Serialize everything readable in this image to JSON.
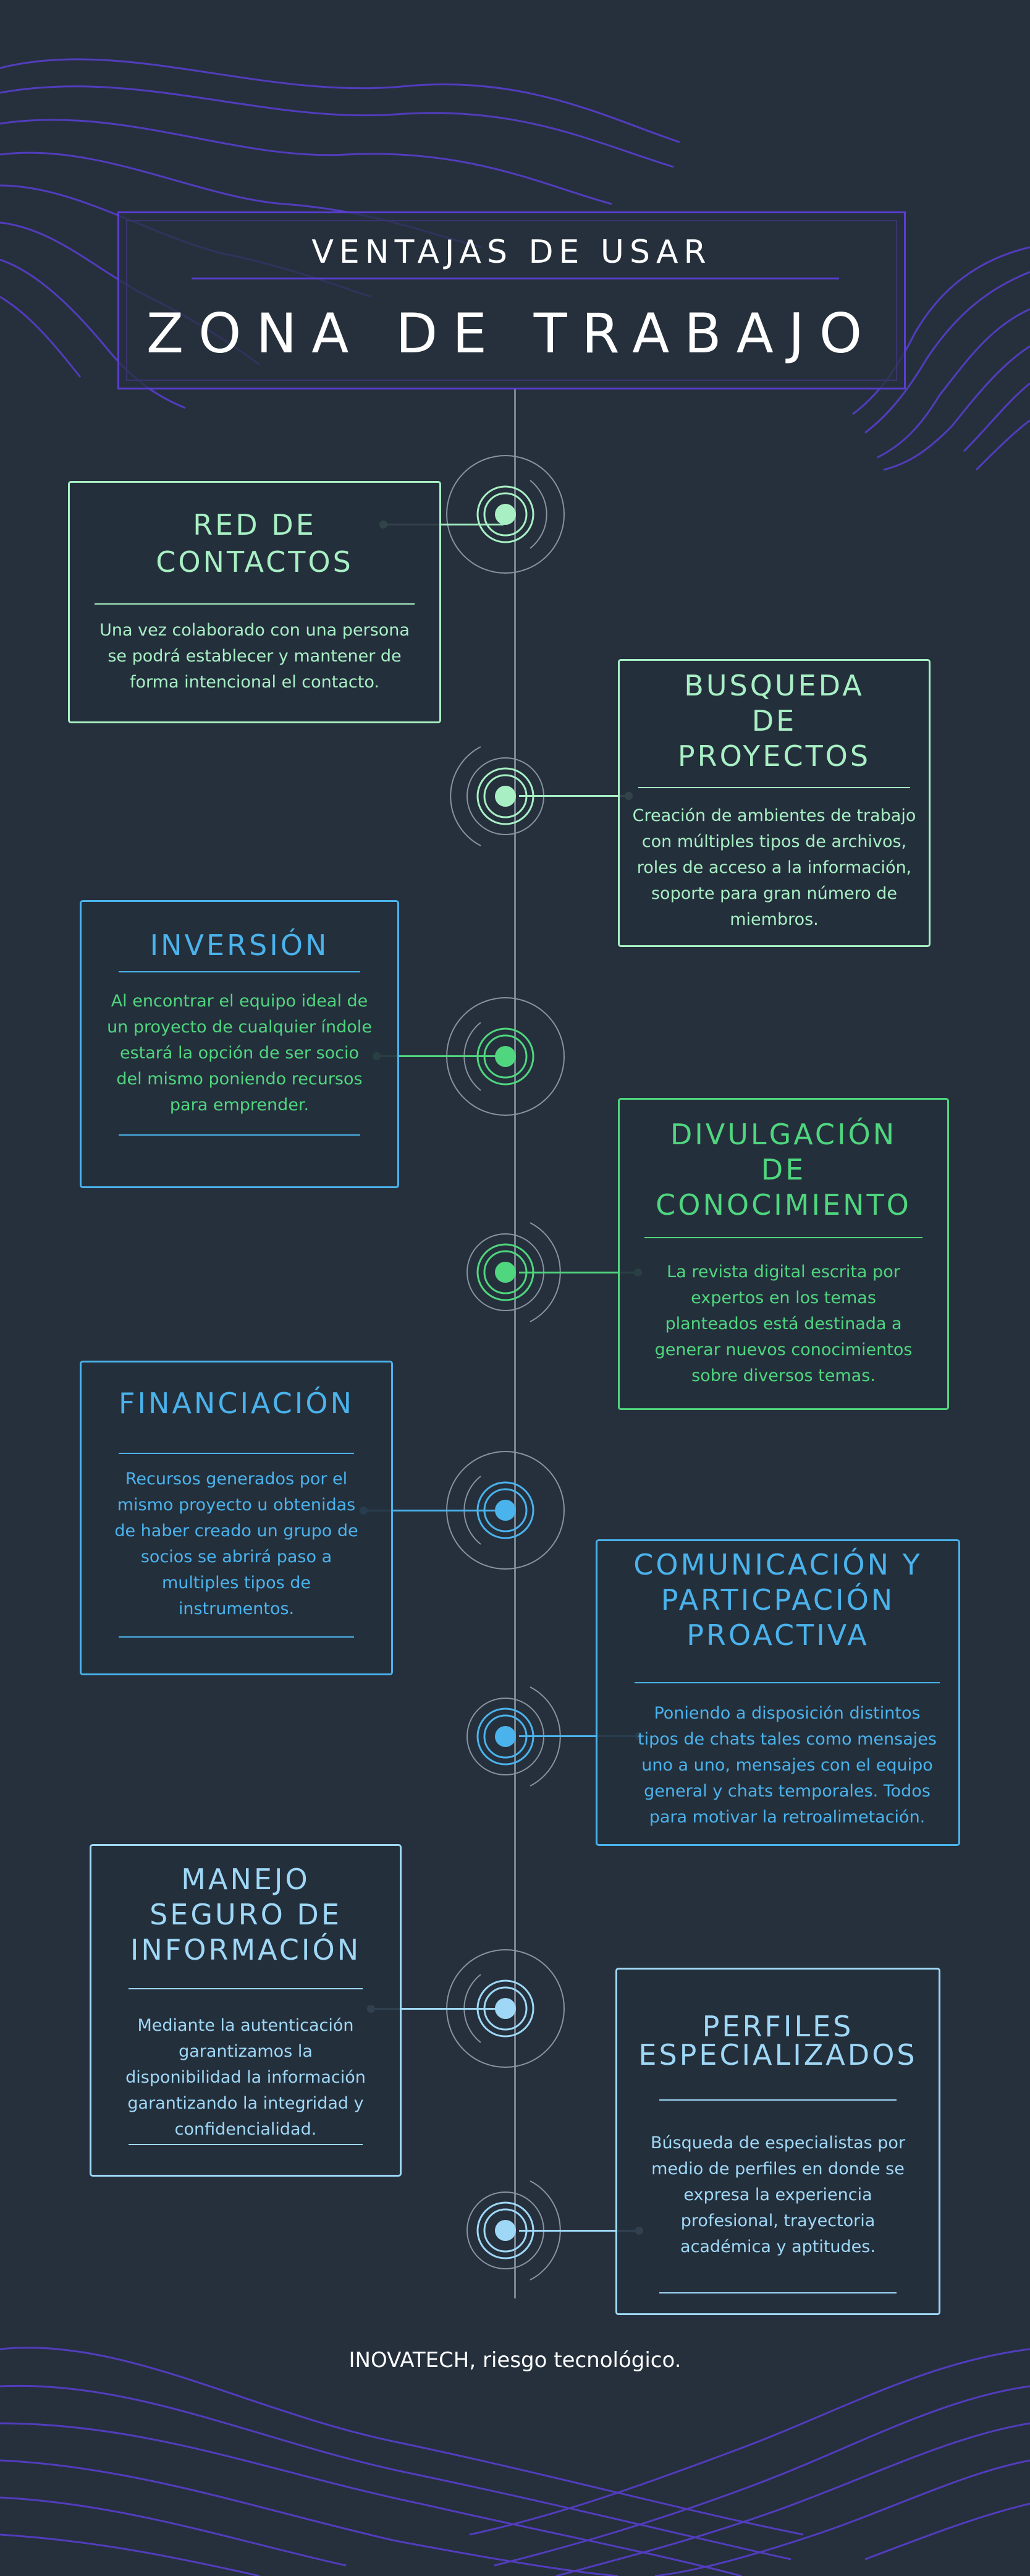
{
  "header": {
    "subtitle": "VENTAJAS DE USAR",
    "title": "ZONA DE TRABAJO"
  },
  "colors": {
    "background": "#25303c",
    "wave_purple": "#5b3fd4",
    "mint": "#a8f0c4",
    "green": "#4fd67e",
    "blue": "#4ab3ec",
    "light_blue": "#9fd8f7"
  },
  "cards": [
    {
      "title_lines": [
        "RED DE",
        "CONTACTOS"
      ],
      "body": "Una vez colaborado con una persona se podrá establecer y mantener de forma intencional el contacto."
    },
    {
      "title_lines": [
        "BUSQUEDA",
        "DE",
        "PROYECTOS"
      ],
      "body": "Creación de ambientes de trabajo con múltiples tipos de archivos, roles de acceso a la información, soporte para gran número de miembros."
    },
    {
      "title_lines": [
        "INVERSIÓN"
      ],
      "body": "Al encontrar el equipo ideal de un proyecto de cualquier índole estará la opción de ser socio del mismo poniendo recursos para emprender."
    },
    {
      "title_lines": [
        "DIVULGACIÓN",
        "DE",
        "CONOCIMIENTO"
      ],
      "body": "La revista digital escrita por expertos en los temas planteados está destinada a generar nuevos conocimientos sobre diversos temas."
    },
    {
      "title_lines": [
        "FINANCIACIÓN"
      ],
      "body": "Recursos generados por el mismo proyecto u obtenidas de haber creado un grupo de socios se abrirá paso a multiples tipos de instrumentos."
    },
    {
      "title_lines": [
        "COMUNICACIÓN Y",
        "PARTICPACIÓN",
        "PROACTIVA"
      ],
      "body": "Poniendo a disposición distintos tipos de chats tales como mensajes uno a uno, mensajes con el equipo general y chats temporales. Todos para motivar la retroalimetación."
    },
    {
      "title_lines": [
        "MANEJO",
        "SEGURO DE",
        "INFORMACIÓN"
      ],
      "body": "Mediante la autenticación garantizamos la disponibilidad la información garantizando la integridad y confidencialidad."
    },
    {
      "title_lines": [
        "PERFILES",
        "ESPECIALIZADOS"
      ],
      "body": "Búsqueda de especialistas por medio de perfiles en donde se expresa la experiencia profesional, trayectoria académica y aptitudes."
    }
  ],
  "footer": {
    "text": "INOVATECH, riesgo tecnológico."
  }
}
